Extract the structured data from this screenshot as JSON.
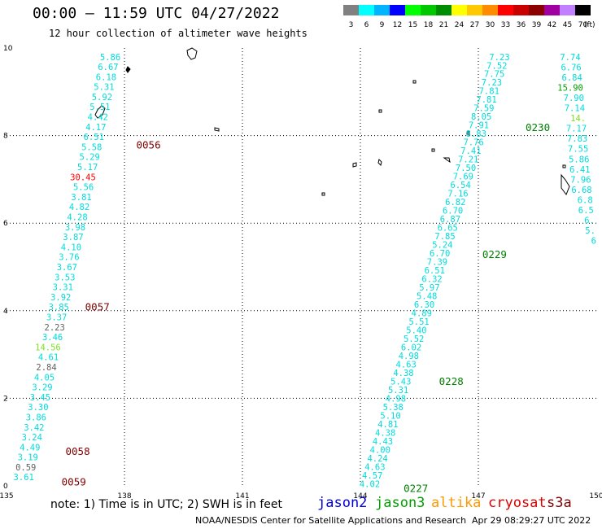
{
  "title": "00:00 – 11:59 UTC 04/27/2022",
  "subtitle": "12 hour collection of altimeter wave heights",
  "legend": {
    "unit": "(ft)",
    "scale": [
      {
        "label": "3",
        "color": "#808080"
      },
      {
        "label": "6",
        "color": "#00ffff"
      },
      {
        "label": "9",
        "color": "#00b4ff"
      },
      {
        "label": "12",
        "color": "#0000ff"
      },
      {
        "label": "15",
        "color": "#00ff00"
      },
      {
        "label": "18",
        "color": "#00c800"
      },
      {
        "label": "21",
        "color": "#008c00"
      },
      {
        "label": "24",
        "color": "#ffff00"
      },
      {
        "label": "27",
        "color": "#ffc800"
      },
      {
        "label": "30",
        "color": "#ff8c00"
      },
      {
        "label": "33",
        "color": "#ff0000"
      },
      {
        "label": "36",
        "color": "#c80000"
      },
      {
        "label": "39",
        "color": "#8c0000"
      },
      {
        "label": "42",
        "color": "#a000a0"
      },
      {
        "label": "45",
        "color": "#c080ff"
      },
      {
        "label": "70",
        "color": "#000000"
      }
    ]
  },
  "axes": {
    "lon_ticks": [
      "135",
      "138",
      "141",
      "144",
      "147",
      "150"
    ],
    "lat_ticks": [
      "0",
      "2",
      "4",
      "6",
      "8",
      "10"
    ],
    "lon_range": [
      135,
      150
    ],
    "lat_range": [
      0,
      10
    ]
  },
  "tracks": [
    {
      "name": "track-left",
      "color_default": "#00dcdc",
      "lon_top": 137.9,
      "lon_bottom": 135.7,
      "values": [
        "5.86",
        "6.67",
        "6.18",
        "5.31",
        "5.92",
        "5.51",
        "4.42",
        "4.17",
        "6.51",
        "5.58",
        "5.29",
        "5.17",
        "30.45",
        "5.56",
        "3.81",
        "4.82",
        "4.28",
        "3.98",
        "3.87",
        "4.10",
        "3.76",
        "3.67",
        "3.53",
        "3.31",
        "3.92",
        "3.85",
        "3.37",
        "2.23",
        "3.46",
        "14.56",
        "4.61",
        "2.84",
        "4.05",
        "3.29",
        "3.45",
        "3.30",
        "3.86",
        "3.42",
        "3.24",
        "4.49",
        "3.19",
        "0.59",
        "3.61"
      ],
      "colors": {
        "12": "#ff0000",
        "27": "#606060",
        "29": "#80e020",
        "31": "#606060",
        "41": "#606060"
      },
      "lat_top": 9.8,
      "lat_bottom": 0.2
    },
    {
      "name": "track-mid",
      "color_default": "#00dcdc",
      "lon_top": 147.8,
      "lon_bottom": 144.5,
      "values": [
        "7.23",
        "7.52",
        "7.75",
        "7.23",
        "7.81",
        "7.81",
        "7.59",
        "8.05",
        "7.91",
        "8.83",
        "7.76",
        "7.41",
        "7.21",
        "7.50",
        "7.69",
        "6.54",
        "7.16",
        "6.82",
        "6.70",
        "6.87",
        "6.65",
        "7.85",
        "5.24",
        "6.70",
        "7.39",
        "6.51",
        "6.32",
        "5.97",
        "5.48",
        "6.30",
        "4.89",
        "5.51",
        "5.40",
        "5.52",
        "6.02",
        "4.98",
        "4.63",
        "4.38",
        "5.43",
        "5.31",
        "4.98",
        "5.38",
        "5.10",
        "4.81",
        "4.38",
        "4.43",
        "4.00",
        "4.24",
        "4.63",
        "4.57",
        "4.02"
      ],
      "colors": {},
      "lat_top": 9.8,
      "lat_bottom": 0.05
    },
    {
      "name": "track-right",
      "color_default": "#00dcdc",
      "lon_top": 149.6,
      "lon_bottom": 150.0,
      "values": [
        "7.74",
        "6.76",
        "6.84",
        "15.90",
        "7.90",
        "7.14",
        "14.",
        "7.17",
        "7.83",
        "7.55",
        "5.86",
        "6.41",
        "7.96",
        "6.68",
        "6.8",
        "6.5",
        "6.",
        "5.",
        "6"
      ],
      "colors": {
        "3": "#00a000",
        "6": "#80e020"
      },
      "lat_top": 9.8,
      "lat_bottom": 5.6
    }
  ],
  "time_labels": [
    {
      "text": "0056",
      "lon": 138.3,
      "lat": 7.8,
      "color": "#800000"
    },
    {
      "text": "0057",
      "lon": 137.0,
      "lat": 4.1,
      "color": "#800000"
    },
    {
      "text": "0058",
      "lon": 136.5,
      "lat": 0.8,
      "color": "#800000"
    },
    {
      "text": "0059",
      "lon": 136.4,
      "lat": 0.1,
      "color": "#800000"
    },
    {
      "text": "0230",
      "lon": 148.2,
      "lat": 8.2,
      "color": "#008000"
    },
    {
      "text": "0229",
      "lon": 147.1,
      "lat": 5.3,
      "color": "#008000"
    },
    {
      "text": "0228",
      "lon": 146.0,
      "lat": 2.4,
      "color": "#008000"
    },
    {
      "text": "0227",
      "lon": 145.1,
      "lat": -0.05,
      "color": "#008000"
    }
  ],
  "note": "note: 1) Time is in UTC; 2) SWH is in feet",
  "satellites": [
    {
      "name": "jason2",
      "color": "#0000dd"
    },
    {
      "name": "jason3",
      "color": "#00a000"
    },
    {
      "name": "altika",
      "color": "#ff9900"
    },
    {
      "name": "cryosat",
      "color": "#dd0000"
    },
    {
      "name": "s3a",
      "color": "#800000"
    }
  ],
  "credit": "NOAA/NESDIS Center for Satellite Applications and Research",
  "issued": "Apr 29 08:29:27 UTC 2022"
}
